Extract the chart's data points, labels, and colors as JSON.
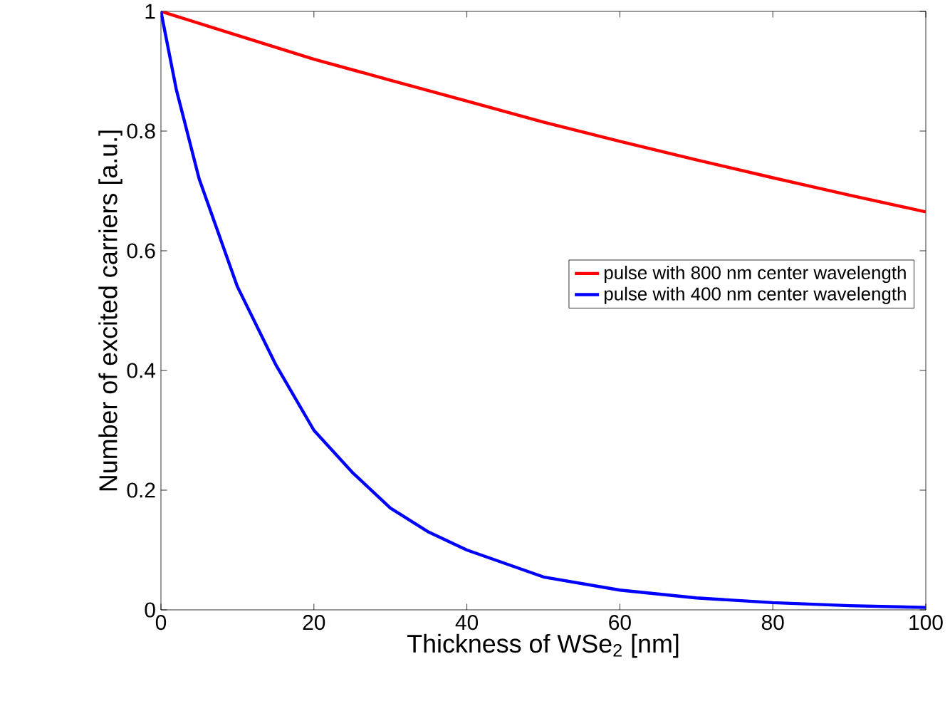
{
  "chart_data": {
    "type": "line",
    "xlabel": "Thickness of WSe$_{2}$ [nm]",
    "ylabel": "Number of excited carriers [a.u.]",
    "xlim": [
      0,
      100
    ],
    "ylim": [
      0,
      1
    ],
    "xticks": [
      0,
      20,
      40,
      60,
      80,
      100
    ],
    "yticks": [
      0,
      0.2,
      0.4,
      0.6,
      0.8,
      1
    ],
    "legend": "right",
    "grid": false,
    "marker": "none",
    "line_style": "solid",
    "series": [
      {
        "name": "pulse with 800 nm center wavelength",
        "color": "#ff0000",
        "x": [
          0,
          10,
          20,
          30,
          40,
          50,
          60,
          70,
          80,
          90,
          100
        ],
        "values": [
          1,
          0.96,
          0.92,
          0.885,
          0.85,
          0.815,
          0.783,
          0.752,
          0.722,
          0.693,
          0.665
        ]
      },
      {
        "name": "pulse with 400 nm center wavelength",
        "color": "#0000ff",
        "x": [
          0,
          2,
          5,
          10,
          15,
          20,
          25,
          30,
          35,
          40,
          50,
          60,
          70,
          80,
          90,
          100
        ],
        "values": [
          1,
          0.87,
          0.72,
          0.54,
          0.41,
          0.3,
          0.23,
          0.17,
          0.13,
          0.1,
          0.055,
          0.033,
          0.02,
          0.012,
          0.007,
          0.004
        ]
      }
    ]
  }
}
